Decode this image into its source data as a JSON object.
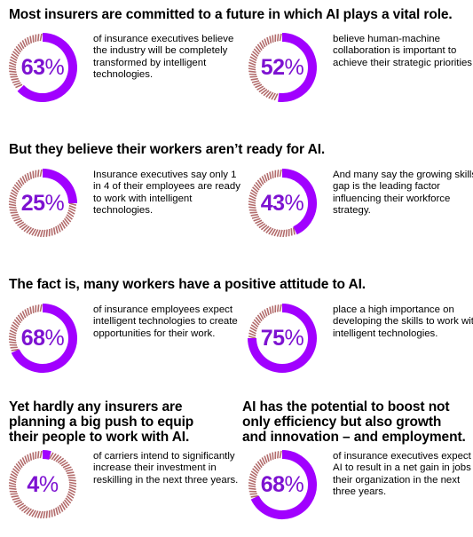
{
  "colors": {
    "accent": "#a100ff",
    "text_accent": "#7d12d1",
    "hatch": "#b26b6b"
  },
  "sections": [
    {
      "heading": "Most insurers are committed to a future in which AI plays a vital role."
    },
    {
      "heading": "But they believe their workers aren’t ready for AI."
    },
    {
      "heading": "The fact is, many workers have a positive attitude to AI."
    },
    {
      "heading": "Yet hardly any insurers are planning a big push to equip their people to work with AI."
    },
    {
      "heading": "AI has the potential to boost not only efficiency but also growth and innovation – and employment."
    }
  ],
  "stats": [
    {
      "number": "63",
      "sign": "%",
      "value": 0.63,
      "text": "of insurance executives believe the industry will be completely transformed by intelligent technologies."
    },
    {
      "number": "52",
      "sign": "%",
      "value": 0.52,
      "text": "believe human-machine collaboration is important to achieve their strategic priorities."
    },
    {
      "number": "25",
      "sign": "%",
      "value": 0.25,
      "text": "Insurance executives say only 1 in 4 of their employees are ready to work with intelligent technologies."
    },
    {
      "number": "43",
      "sign": "%",
      "value": 0.43,
      "text": "And many say the growing skills gap is the leading factor influencing their workforce strategy."
    },
    {
      "number": "68",
      "sign": "%",
      "value": 0.68,
      "text": "of insurance employees expect intelligent technologies to create opportunities for their work."
    },
    {
      "number": "75",
      "sign": "%",
      "value": 0.75,
      "text": "place a high importance on developing the skills to work with intelligent technologies."
    },
    {
      "number": "4",
      "sign": "%",
      "value": 0.04,
      "text": "of carriers intend to significantly increase their investment in reskilling in the next three years."
    },
    {
      "number": "68",
      "sign": "%",
      "value": 0.68,
      "text": "of insurance executives expect AI to result in a net gain in jobs in their organization in the next three years."
    }
  ]
}
